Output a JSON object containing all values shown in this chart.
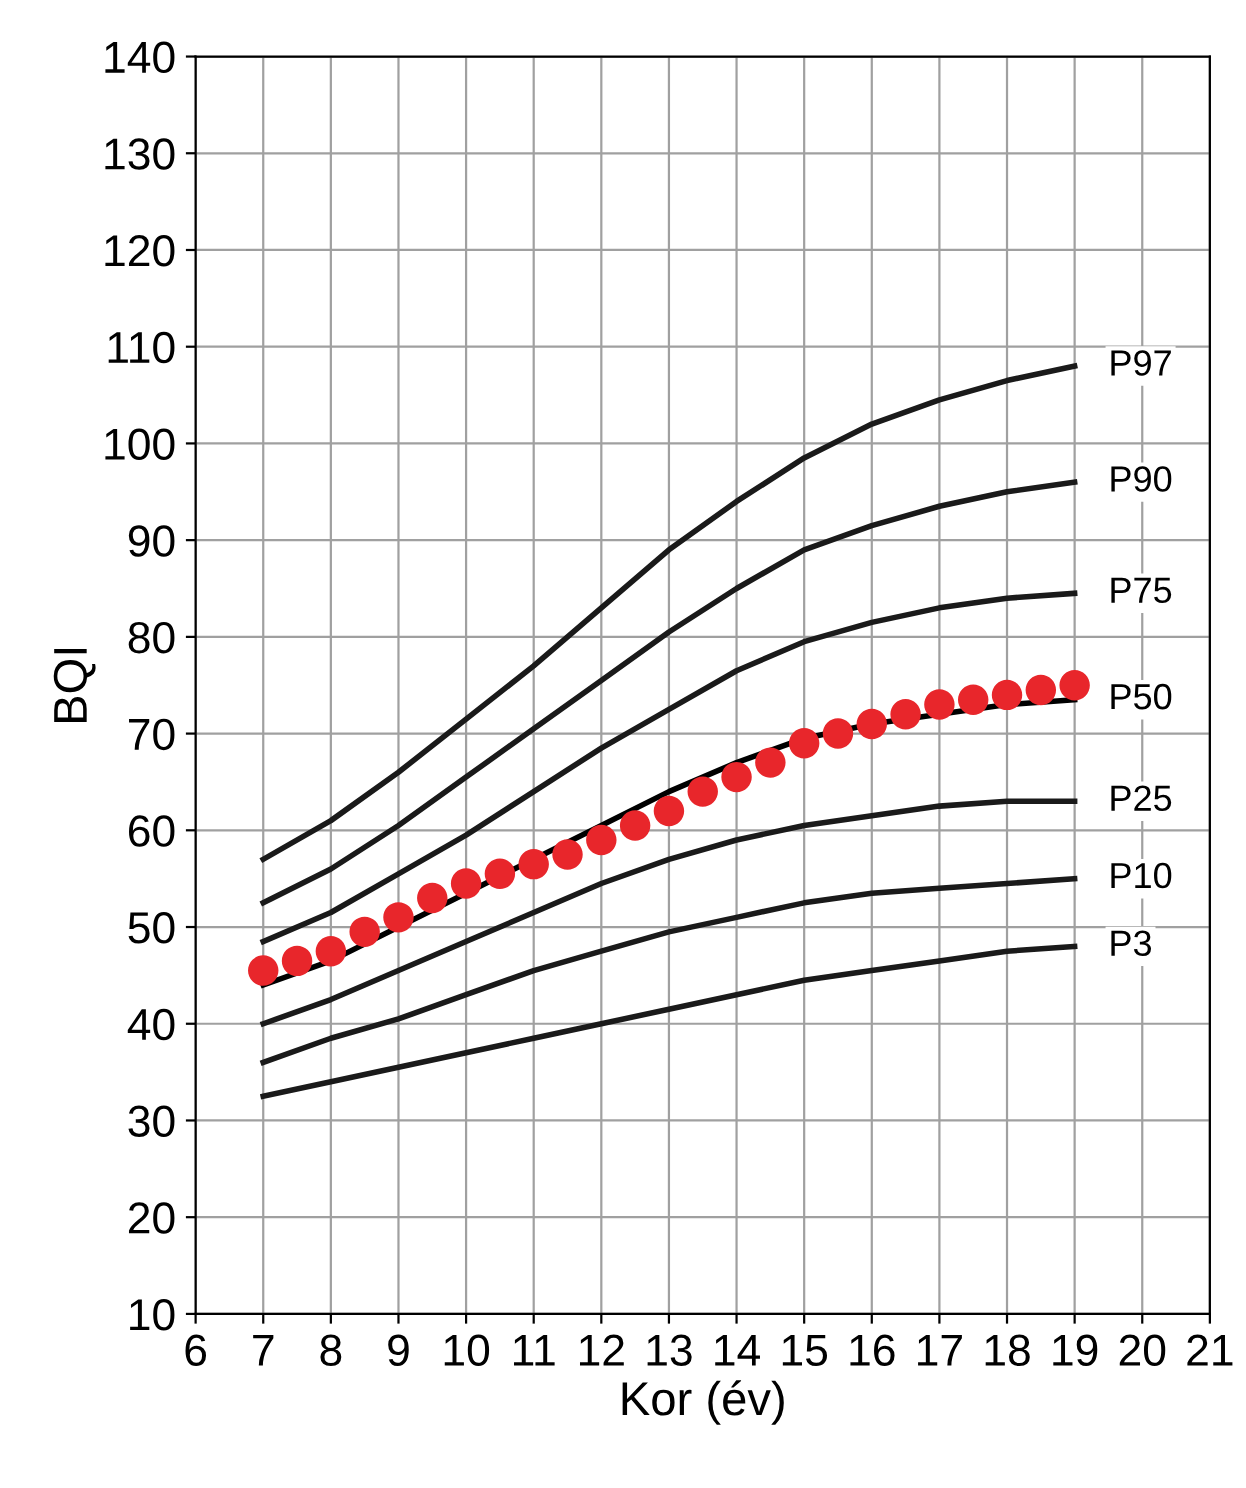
{
  "chart_data": {
    "type": "line",
    "xlabel": "Kor (év)",
    "ylabel": "BQI",
    "x": [
      7,
      8,
      9,
      10,
      11,
      12,
      13,
      14,
      15,
      16,
      17,
      18,
      19
    ],
    "xlim": [
      6,
      21
    ],
    "xticks": [
      6,
      7,
      8,
      9,
      10,
      11,
      12,
      13,
      14,
      15,
      16,
      17,
      18,
      19,
      20,
      21
    ],
    "ylim": [
      10,
      140
    ],
    "yticks": [
      10,
      20,
      30,
      40,
      50,
      60,
      70,
      80,
      90,
      100,
      110,
      120,
      130,
      140
    ],
    "grid": true,
    "legend": false,
    "marker": "none",
    "line_style": "solid",
    "series": [
      {
        "name": "P97",
        "color": "#1a1a1a",
        "values": [
          57,
          61,
          66,
          71.5,
          77,
          83,
          89,
          94,
          98.5,
          102,
          104.5,
          106.5,
          108
        ]
      },
      {
        "name": "P90",
        "color": "#1a1a1a",
        "values": [
          52.5,
          56,
          60.5,
          65.5,
          70.5,
          75.5,
          80.5,
          85,
          89,
          91.5,
          93.5,
          95,
          96
        ]
      },
      {
        "name": "P75",
        "color": "#1a1a1a",
        "values": [
          48.5,
          51.5,
          55.5,
          59.5,
          64,
          68.5,
          72.5,
          76.5,
          79.5,
          81.5,
          83,
          84,
          84.5
        ]
      },
      {
        "name": "P50",
        "color": "#000000",
        "values": [
          44,
          46.5,
          50,
          53.5,
          57,
          60.5,
          64,
          67,
          69.5,
          71,
          72,
          73,
          73.5
        ]
      },
      {
        "name": "P25",
        "color": "#1a1a1a",
        "values": [
          40,
          42.5,
          45.5,
          48.5,
          51.5,
          54.5,
          57,
          59,
          60.5,
          61.5,
          62.5,
          63,
          63
        ]
      },
      {
        "name": "P10",
        "color": "#1a1a1a",
        "values": [
          36,
          38.5,
          40.5,
          43,
          45.5,
          47.5,
          49.5,
          51,
          52.5,
          53.5,
          54,
          54.5,
          55
        ]
      },
      {
        "name": "P3",
        "color": "#1a1a1a",
        "values": [
          32.5,
          34,
          35.5,
          37,
          38.5,
          40,
          41.5,
          43,
          44.5,
          45.5,
          46.5,
          47.5,
          48
        ]
      },
      {
        "type": "scatter",
        "marker": "circle",
        "color": "#e8262b",
        "x": [
          7,
          7.5,
          8,
          8.5,
          9,
          9.5,
          10,
          10.5,
          11,
          11.5,
          12,
          12.5,
          13,
          13.5,
          14,
          14.5,
          15,
          15.5,
          16,
          16.5,
          17,
          17.5,
          18,
          18.5,
          19
        ],
        "values": [
          45.5,
          46.5,
          47.5,
          49.5,
          51,
          53,
          54.5,
          55.5,
          56.5,
          57.5,
          59,
          60.5,
          62,
          64,
          65.5,
          67,
          69,
          70,
          71,
          72,
          73,
          73.5,
          74,
          74.5,
          75
        ]
      }
    ]
  }
}
